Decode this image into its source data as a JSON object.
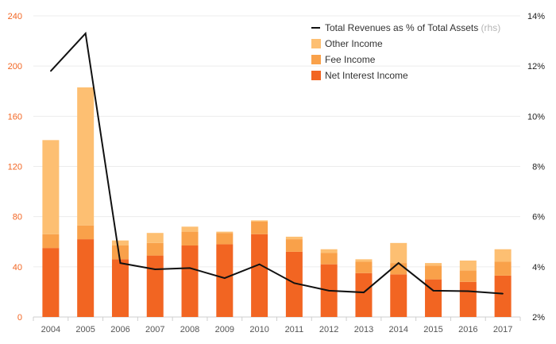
{
  "chart_data": {
    "type": "bar",
    "stacked": true,
    "categories": [
      "2004",
      "2005",
      "2006",
      "2007",
      "2008",
      "2009",
      "2010",
      "2011",
      "2012",
      "2013",
      "2014",
      "2015",
      "2016",
      "2017"
    ],
    "series": [
      {
        "name": "Net Interest Income",
        "type": "bar",
        "axis": "left",
        "color": "#f26522",
        "values": [
          55,
          62,
          46,
          49,
          57,
          58,
          66,
          52,
          42,
          35,
          34,
          30,
          28,
          33
        ]
      },
      {
        "name": "Fee Income",
        "type": "bar",
        "axis": "left",
        "color": "#f9a14a",
        "values": [
          11,
          11,
          11,
          10,
          11,
          9,
          10,
          10,
          9,
          9,
          9,
          11,
          9,
          11
        ]
      },
      {
        "name": "Other Income",
        "type": "bar",
        "axis": "left",
        "color": "#fdbf72",
        "values": [
          75,
          110,
          4,
          8,
          4,
          1,
          1,
          2,
          3,
          2,
          16,
          2,
          8,
          10
        ]
      },
      {
        "name": "Total Revenues as % of Total Assets",
        "name_suffix": "(rhs)",
        "type": "line",
        "axis": "right",
        "color": "#111111",
        "values": [
          11.8,
          13.3,
          4.15,
          3.9,
          3.95,
          3.55,
          4.1,
          3.35,
          3.05,
          2.98,
          4.15,
          3.05,
          3.03,
          2.93
        ]
      }
    ],
    "y_left": {
      "ticks": [
        "0",
        "40",
        "80",
        "120",
        "160",
        "200",
        "240"
      ],
      "range": [
        0,
        240
      ],
      "color": "#f26522"
    },
    "y_right": {
      "ticks": [
        "2%",
        "4%",
        "6%",
        "8%",
        "10%",
        "12%",
        "14%"
      ],
      "range": [
        2,
        14
      ],
      "color": "#222222"
    },
    "legend_placement": "top-right",
    "grid": true
  }
}
